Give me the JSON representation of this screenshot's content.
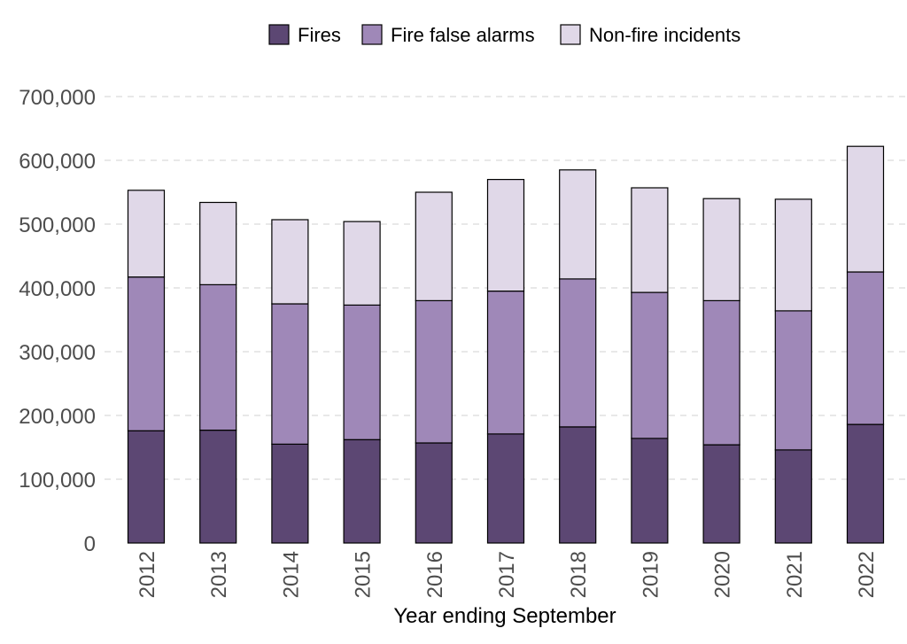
{
  "chart_data": {
    "type": "bar",
    "stacked": true,
    "title": "",
    "xlabel": "Year ending September",
    "ylabel": "",
    "categories": [
      "2012",
      "2013",
      "2014",
      "2015",
      "2016",
      "2017",
      "2018",
      "2019",
      "2020",
      "2021",
      "2022"
    ],
    "series": [
      {
        "name": "Fires",
        "color": "#5c4773",
        "values": [
          176000,
          177000,
          155000,
          162000,
          157000,
          171000,
          182000,
          164000,
          154000,
          146000,
          186000
        ]
      },
      {
        "name": "Fire false alarms",
        "color": "#9f88b8",
        "values": [
          241000,
          228000,
          220000,
          211000,
          223000,
          224000,
          232000,
          229000,
          226000,
          218000,
          239000
        ]
      },
      {
        "name": "Non-fire incidents",
        "color": "#e0d8e8",
        "values": [
          136000,
          129000,
          132000,
          131000,
          170000,
          175000,
          171000,
          164000,
          160000,
          175000,
          197000
        ]
      }
    ],
    "ylim": [
      0,
      700000
    ],
    "yticks": [
      0,
      100000,
      200000,
      300000,
      400000,
      500000,
      600000,
      700000
    ],
    "ytick_labels": [
      "0",
      "100,000",
      "200,000",
      "300,000",
      "400,000",
      "500,000",
      "600,000",
      "700,000"
    ],
    "grid": "horizontal dashed",
    "legend_position": "top"
  }
}
